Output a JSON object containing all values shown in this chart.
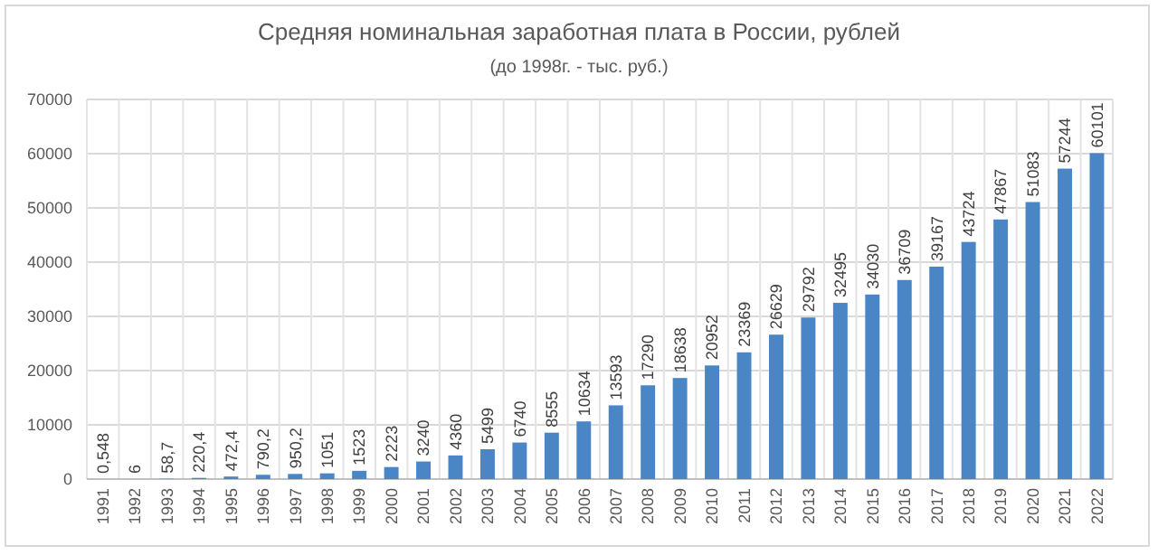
{
  "chart_data": {
    "type": "bar",
    "title": "Средняя номинальная заработная плата в России, рублей",
    "subtitle": "(до 1998г. - тыс. руб.)",
    "categories": [
      "1991",
      "1992",
      "1993",
      "1994",
      "1995",
      "1996",
      "1997",
      "1998",
      "1999",
      "2000",
      "2001",
      "2002",
      "2003",
      "2004",
      "2005",
      "2006",
      "2007",
      "2008",
      "2009",
      "2010",
      "2011",
      "2012",
      "2013",
      "2014",
      "2015",
      "2016",
      "2017",
      "2018",
      "2019",
      "2020",
      "2021",
      "2022"
    ],
    "values": [
      0.548,
      6,
      58.7,
      220.4,
      472.4,
      790.2,
      950.2,
      1051,
      1523,
      2223,
      3240,
      4360,
      5499,
      6740,
      8555,
      10634,
      13593,
      17290,
      18638,
      20952,
      23369,
      26629,
      29792,
      32495,
      34030,
      36709,
      39167,
      43724,
      47867,
      51083,
      57244,
      60101
    ],
    "value_labels": [
      "0,548",
      "6",
      "58,7",
      "220,4",
      "472,4",
      "790,2",
      "950,2",
      "1051",
      "1523",
      "2223",
      "3240",
      "4360",
      "5499",
      "6740",
      "8555",
      "10634",
      "13593",
      "17290",
      "18638",
      "20952",
      "23369",
      "26629",
      "29792",
      "32495",
      "34030",
      "36709",
      "39167",
      "43724",
      "47867",
      "51083",
      "57244",
      "60101"
    ],
    "color": "#4a86c5",
    "ylim": [
      0,
      70000
    ],
    "yticks": [
      0,
      10000,
      20000,
      30000,
      40000,
      50000,
      60000,
      70000
    ],
    "grid": true
  }
}
